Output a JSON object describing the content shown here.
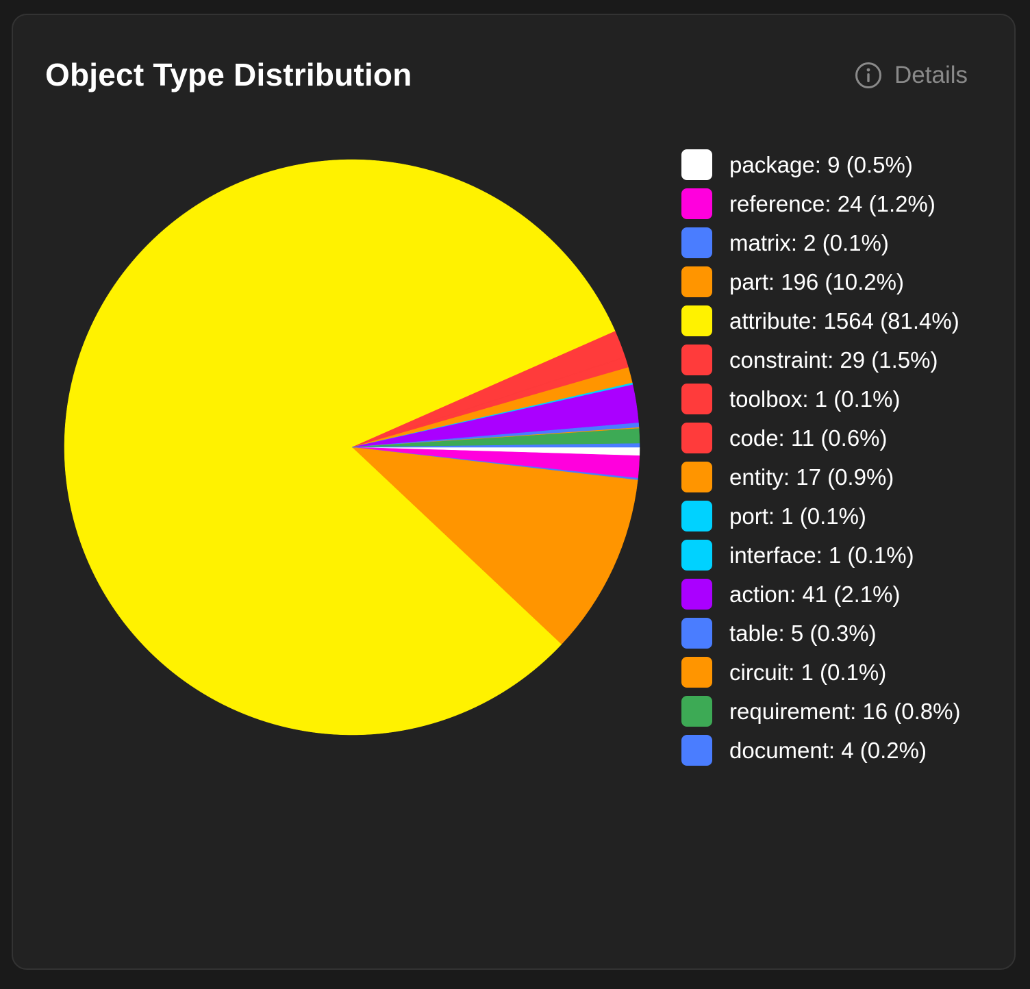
{
  "card": {
    "title": "Object Type Distribution",
    "details_label": "Details",
    "details_icon": "info-icon"
  },
  "chart_data": {
    "type": "pie",
    "title": "Object Type Distribution",
    "legend_position": "right",
    "start_angle_note": "clockwise from 3 o'clock",
    "slices": [
      {
        "label": "package: 9 (0.5%)",
        "name": "package",
        "value": 9,
        "percent": 0.5,
        "color": "#ffffff"
      },
      {
        "label": "reference: 24 (1.2%)",
        "name": "reference",
        "value": 24,
        "percent": 1.2,
        "color": "#ff00dd"
      },
      {
        "label": "matrix: 2 (0.1%)",
        "name": "matrix",
        "value": 2,
        "percent": 0.1,
        "color": "#4a7dff"
      },
      {
        "label": "part: 196 (10.2%)",
        "name": "part",
        "value": 196,
        "percent": 10.2,
        "color": "#ff9500"
      },
      {
        "label": "attribute: 1564 (81.4%)",
        "name": "attribute",
        "value": 1564,
        "percent": 81.4,
        "color": "#fff200"
      },
      {
        "label": "constraint: 29 (1.5%)",
        "name": "constraint",
        "value": 29,
        "percent": 1.5,
        "color": "#ff3b3b"
      },
      {
        "label": "toolbox: 1 (0.1%)",
        "name": "toolbox",
        "value": 1,
        "percent": 0.1,
        "color": "#ff3b3b"
      },
      {
        "label": "code: 11 (0.6%)",
        "name": "code",
        "value": 11,
        "percent": 0.6,
        "color": "#ff3b3b"
      },
      {
        "label": "entity: 17 (0.9%)",
        "name": "entity",
        "value": 17,
        "percent": 0.9,
        "color": "#ff9500"
      },
      {
        "label": "port: 1 (0.1%)",
        "name": "port",
        "value": 1,
        "percent": 0.1,
        "color": "#00d2ff"
      },
      {
        "label": "interface: 1 (0.1%)",
        "name": "interface",
        "value": 1,
        "percent": 0.1,
        "color": "#00d2ff"
      },
      {
        "label": "action: 41 (2.1%)",
        "name": "action",
        "value": 41,
        "percent": 2.1,
        "color": "#aa00ff"
      },
      {
        "label": "table: 5 (0.3%)",
        "name": "table",
        "value": 5,
        "percent": 0.3,
        "color": "#4a7dff"
      },
      {
        "label": "circuit: 1 (0.1%)",
        "name": "circuit",
        "value": 1,
        "percent": 0.1,
        "color": "#ff9500"
      },
      {
        "label": "requirement: 16 (0.8%)",
        "name": "requirement",
        "value": 16,
        "percent": 0.8,
        "color": "#3daa55"
      },
      {
        "label": "document: 4 (0.2%)",
        "name": "document",
        "value": 4,
        "percent": 0.2,
        "color": "#4a7dff"
      }
    ]
  }
}
